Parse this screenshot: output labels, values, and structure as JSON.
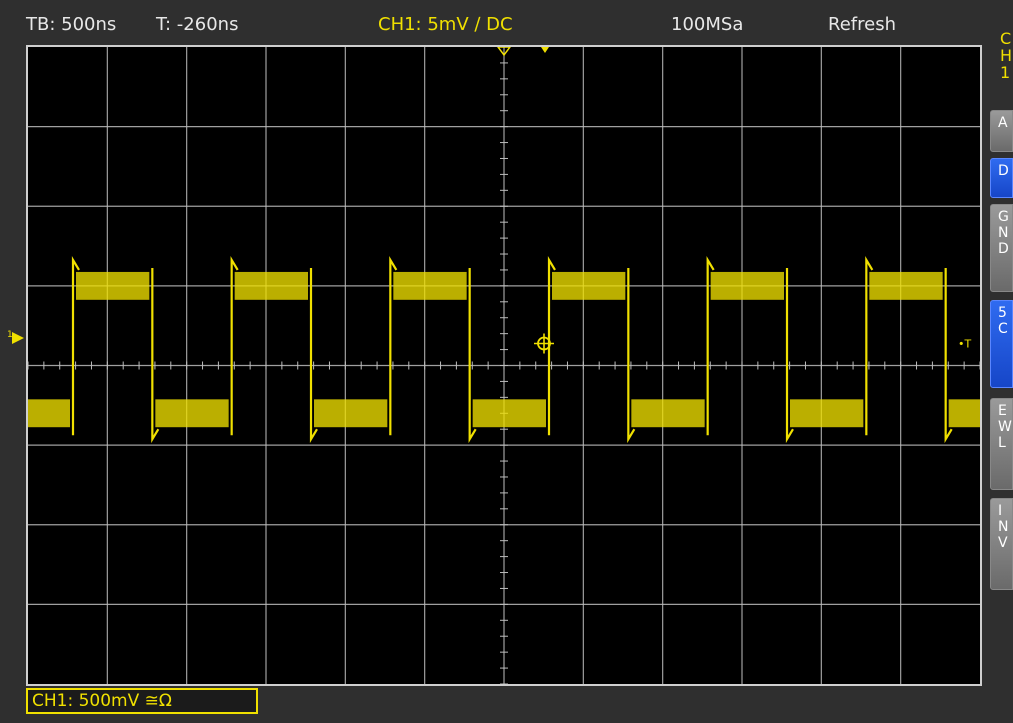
{
  "header": {
    "timebase": "TB: 500ns",
    "trigger_time": "T: -260ns",
    "channel_setting": "CH1: 5mV ∕ DC",
    "sample_rate": "100MSa",
    "acq_mode": "Refresh"
  },
  "corner_info": [
    "C",
    "H",
    "1"
  ],
  "side_menu": [
    {
      "label": "A",
      "style": "grey"
    },
    {
      "label": "D",
      "style": "blue"
    },
    {
      "label": "G\nN\nD",
      "style": "grey"
    },
    {
      "label": "5\nC",
      "style": "blue"
    },
    {
      "label": "E\nW\nL",
      "style": "grey"
    },
    {
      "label": "I\nN\nV",
      "style": "grey"
    }
  ],
  "markers": {
    "ground_marker": "1",
    "trigger_marker": "T"
  },
  "status_bar": {
    "channel_label": "CH1: 500mV ≅Ω"
  },
  "colors": {
    "trace": "#f0e000",
    "grid": "#bdbdbd",
    "screen_bg": "#000000",
    "softkey_blue": "#1e55e0"
  },
  "waveform": {
    "type": "square",
    "frequency_MHz": 1.0,
    "time_per_div_ns": 500,
    "volts_per_div_mV": 500,
    "horizontal_divisions": 12,
    "vertical_divisions": 8,
    "high_level_div": 1.0,
    "low_level_div": -0.6,
    "noise_band_div": 0.35
  }
}
